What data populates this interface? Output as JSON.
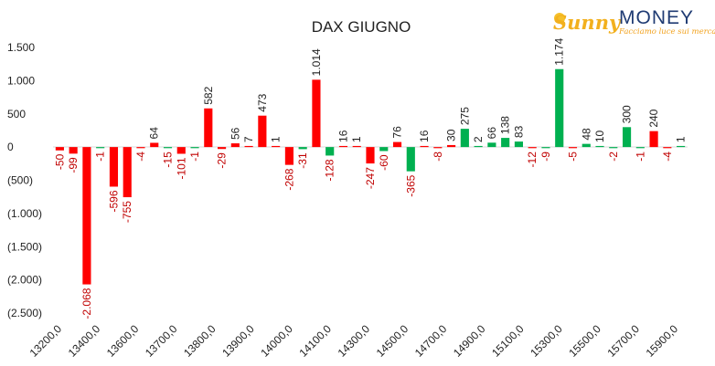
{
  "logo": {
    "brand_a": "Sunny",
    "brand_b": "MONEY",
    "tagline": "Facciamo luce sui mercati"
  },
  "colors": {
    "positive": "#00b050",
    "negative": "#ff0000",
    "label_positive": "#222222",
    "label_negative": "#c00000"
  },
  "chart_data": {
    "type": "bar",
    "title": "DAX GIUGNO",
    "xlabel": "",
    "ylabel": "",
    "ylim": [
      -2500,
      1500
    ],
    "yticks": [
      1500,
      1000,
      500,
      0,
      -500,
      -1000,
      -1500,
      -2000,
      -2500
    ],
    "ytick_labels": [
      "1.500",
      "1.000",
      "500",
      "0",
      "(500)",
      "(1.000)",
      "(1.500)",
      "(2.000)",
      "(2.500)"
    ],
    "x_tick_labels": [
      "13200,0",
      "13400,0",
      "13600,0",
      "13700,0",
      "13800,0",
      "13900,0",
      "14000,0",
      "14100,0",
      "14300,0",
      "14500,0",
      "14700,0",
      "14900,0",
      "15100,0",
      "15300,0",
      "15500,0",
      "15700,0",
      "15900,0"
    ],
    "grid": false,
    "legend": "none",
    "series": [
      {
        "values": [
          -50,
          -99,
          -2068,
          -1,
          -596,
          -755,
          -4,
          64,
          -15,
          -101,
          -1,
          582,
          -29,
          56,
          7,
          473,
          1,
          -268,
          -31,
          1014,
          -128,
          16,
          1,
          -247,
          -60,
          76,
          -365,
          16,
          -8,
          30,
          275,
          2,
          66,
          138,
          83,
          -12,
          -9,
          1174,
          -5,
          48,
          10,
          -2,
          300,
          -1,
          240,
          -4,
          1
        ],
        "labels": [
          "-50",
          "-99",
          "-2.068",
          "-1",
          "-596",
          "-755",
          "-4",
          "64",
          "-15",
          "-101",
          "-1",
          "582",
          "-29",
          "56",
          "7",
          "473",
          "1",
          "-268",
          "-31",
          "1.014",
          "-128",
          "16",
          "1",
          "-247",
          "-60",
          "76",
          "-365",
          "16",
          "-8",
          "30",
          "275",
          "2",
          "66",
          "138",
          "83",
          "-12",
          "-9",
          "1.174",
          "-5",
          "48",
          "10",
          "-2",
          "300",
          "-1",
          "240",
          "-4",
          "1"
        ],
        "colors": [
          "red",
          "red",
          "red",
          "green",
          "red",
          "red",
          "red",
          "red",
          "green",
          "red",
          "green",
          "red",
          "red",
          "red",
          "red",
          "red",
          "red",
          "red",
          "green",
          "red",
          "green",
          "red",
          "red",
          "red",
          "green",
          "red",
          "green",
          "red",
          "red",
          "red",
          "green",
          "green",
          "green",
          "green",
          "green",
          "red",
          "green",
          "green",
          "red",
          "green",
          "green",
          "green",
          "green",
          "green",
          "red",
          "red",
          "green"
        ]
      }
    ]
  }
}
